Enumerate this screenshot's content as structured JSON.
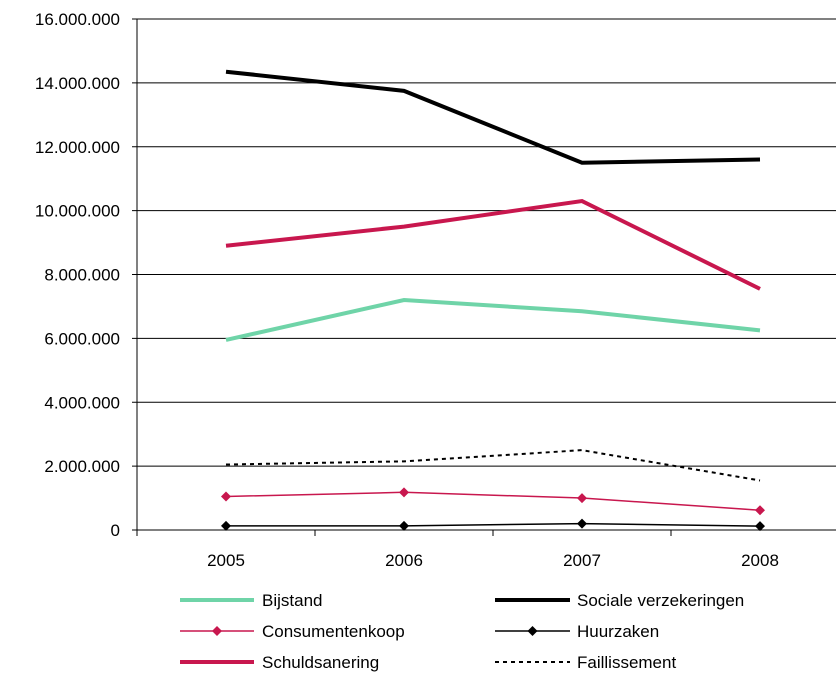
{
  "chart_data": {
    "type": "line",
    "categories": [
      "2005",
      "2006",
      "2007",
      "2008"
    ],
    "ylim": [
      0,
      16000000
    ],
    "y_ticks": [
      {
        "value": 0,
        "label": "0"
      },
      {
        "value": 2000000,
        "label": "2.000.000"
      },
      {
        "value": 4000000,
        "label": "4.000.000"
      },
      {
        "value": 6000000,
        "label": "6.000.000"
      },
      {
        "value": 8000000,
        "label": "8.000.000"
      },
      {
        "value": 10000000,
        "label": "10.000.000"
      },
      {
        "value": 12000000,
        "label": "12.000.000"
      },
      {
        "value": 14000000,
        "label": "14.000.000"
      },
      {
        "value": 16000000,
        "label": "16.000.000"
      }
    ],
    "grid": true,
    "legend_position": "bottom",
    "series": [
      {
        "name": "Bijstand",
        "values": [
          5950000,
          7200000,
          6850000,
          6250000
        ],
        "color": "#6fd4a8",
        "style": "thick"
      },
      {
        "name": "Sociale verzekeringen",
        "values": [
          14350000,
          13750000,
          11500000,
          11600000
        ],
        "color": "#000000",
        "style": "thick"
      },
      {
        "name": "Consumentenkoop",
        "values": [
          1050000,
          1180000,
          1000000,
          620000
        ],
        "color": "#c8174e",
        "style": "marker"
      },
      {
        "name": "Huurzaken",
        "values": [
          130000,
          130000,
          200000,
          120000
        ],
        "color": "#000000",
        "style": "marker"
      },
      {
        "name": "Schuldsanering",
        "values": [
          8900000,
          9500000,
          10300000,
          7550000
        ],
        "color": "#c8174e",
        "style": "thick"
      },
      {
        "name": "Faillissement",
        "values": [
          2050000,
          2150000,
          2500000,
          1550000
        ],
        "color": "#000000",
        "style": "dotted"
      }
    ]
  }
}
